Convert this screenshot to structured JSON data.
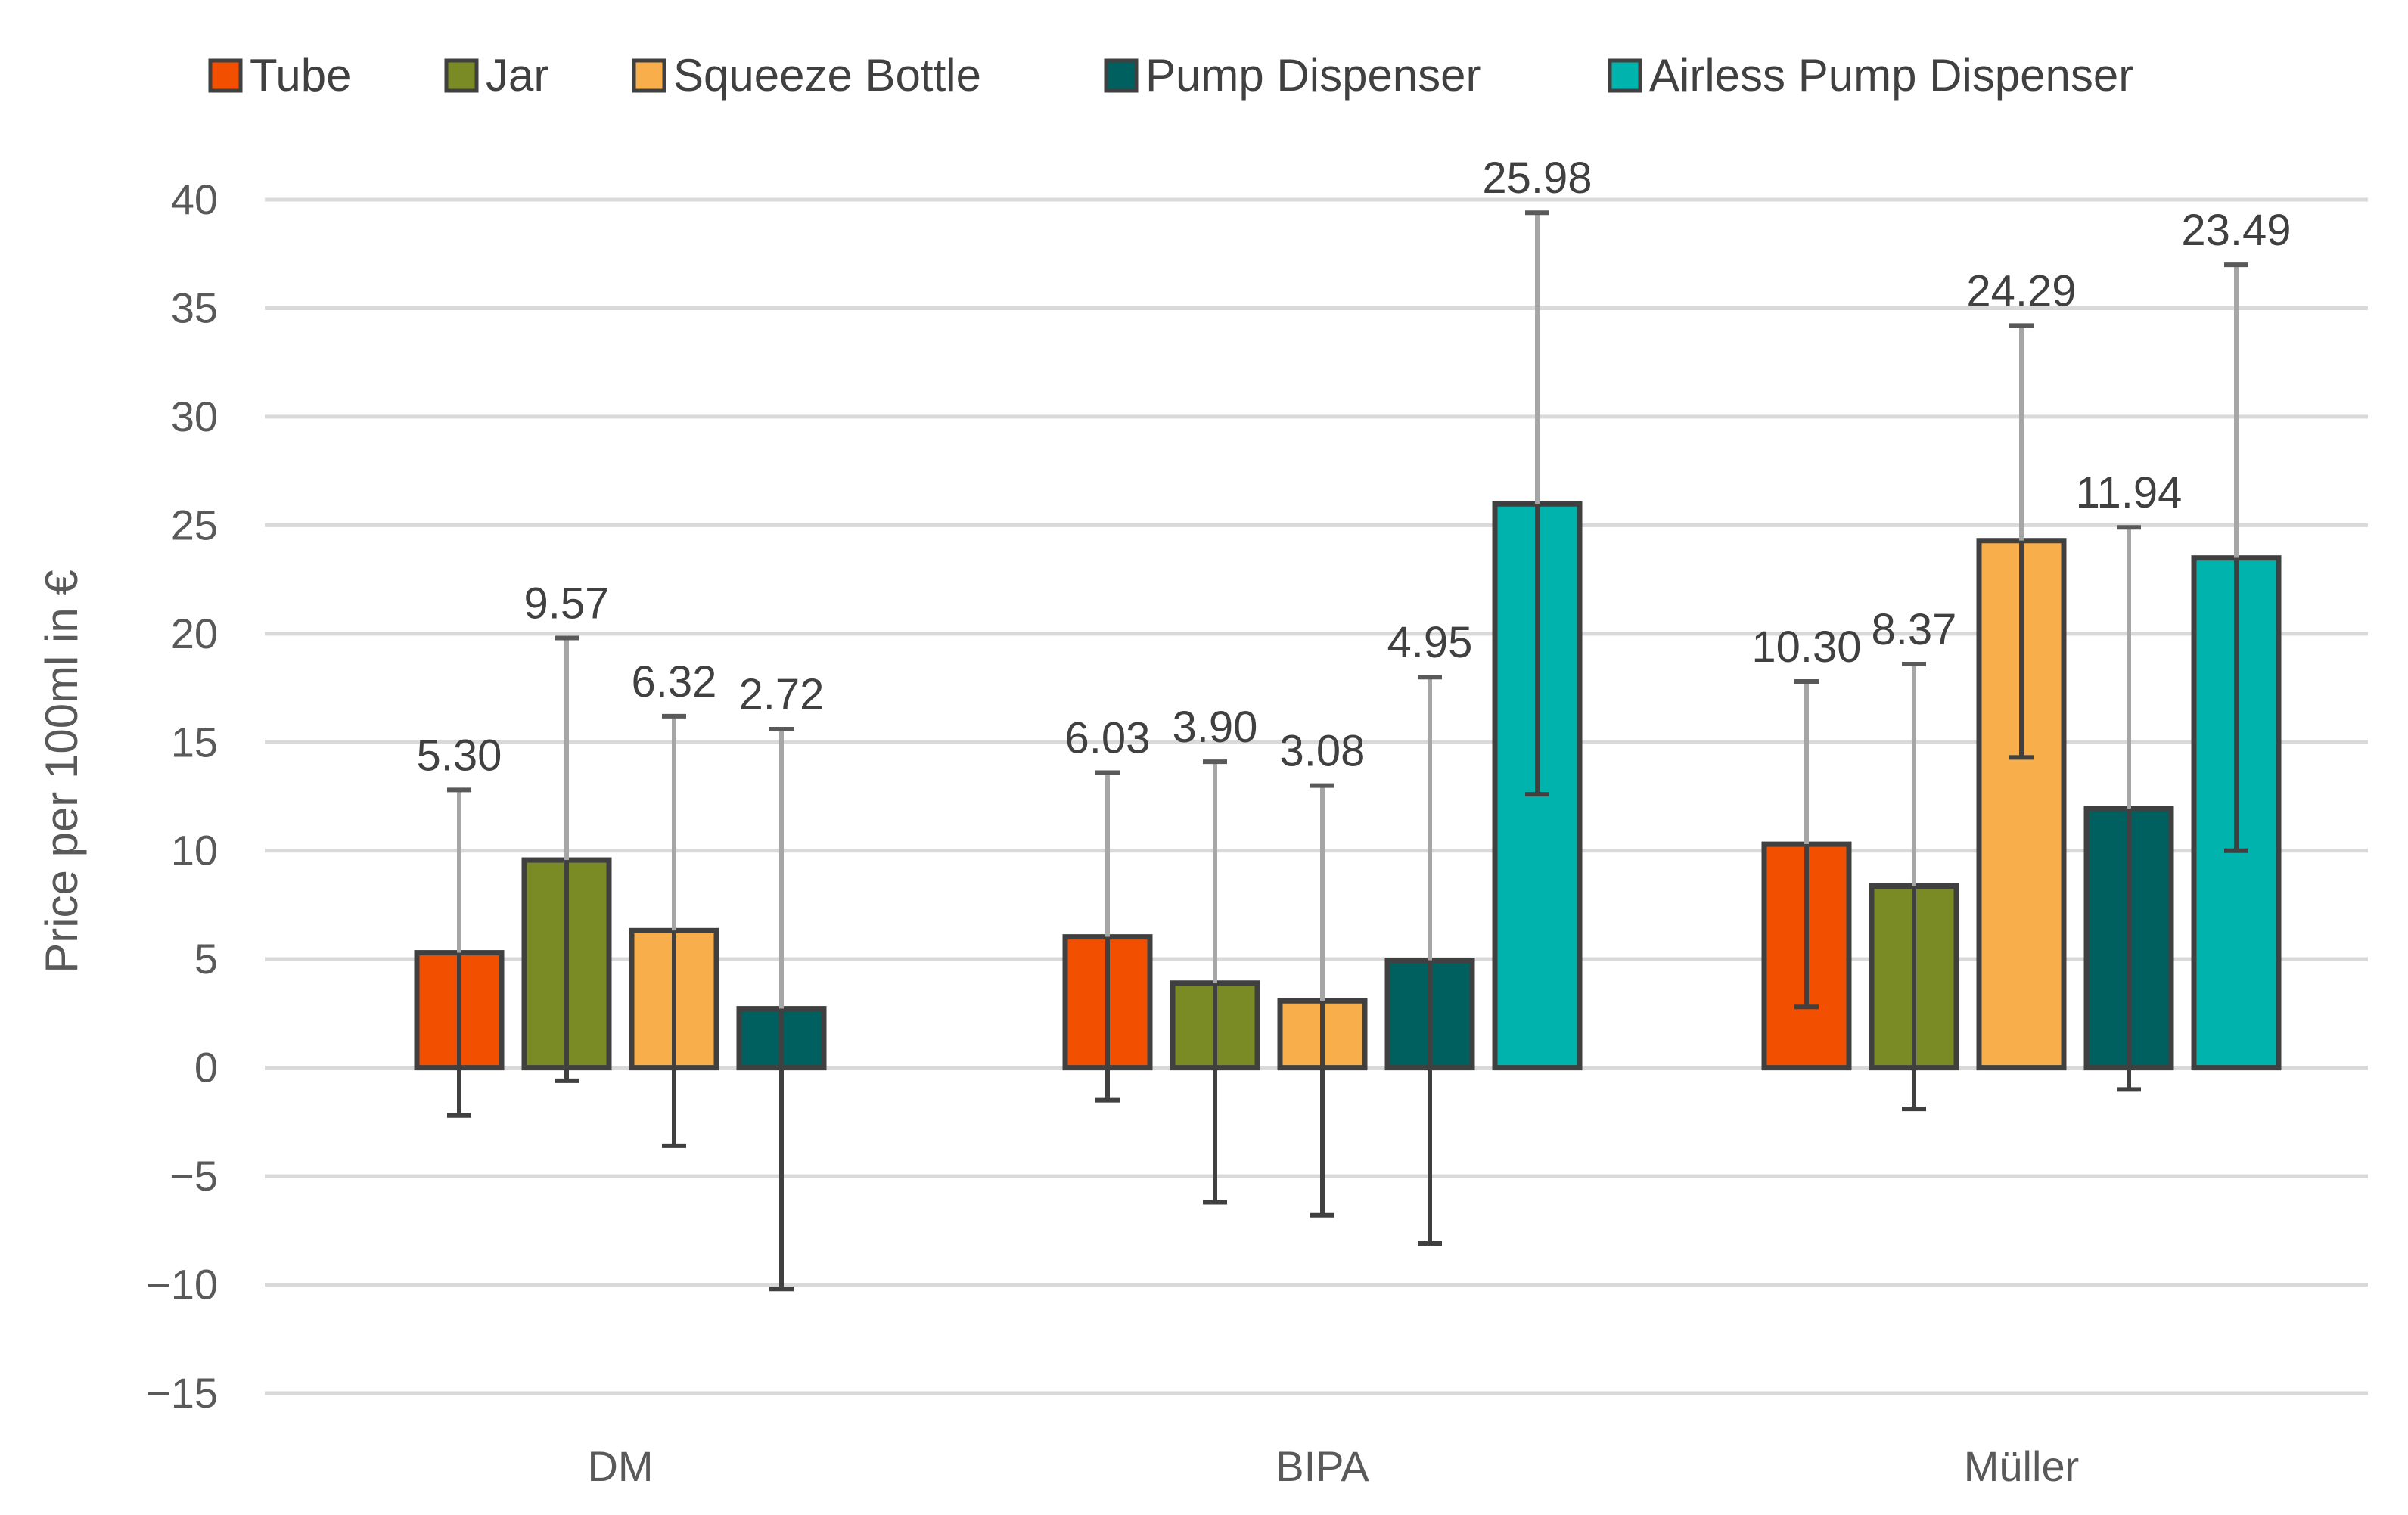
{
  "chart_data": {
    "type": "bar",
    "title": "",
    "xlabel": "",
    "ylabel": "Price per 100ml in €",
    "ylim": [
      -15,
      40
    ],
    "yticks": [
      -15,
      -10,
      -5,
      0,
      5,
      10,
      15,
      20,
      25,
      30,
      35,
      40
    ],
    "ytick_labels": [
      "−15",
      "−10",
      "−5",
      "0",
      "5",
      "10",
      "15",
      "20",
      "25",
      "30",
      "35",
      "40"
    ],
    "grid": true,
    "legend_position": "top",
    "categories": [
      "DM",
      "BIPA",
      "Müller"
    ],
    "series": [
      {
        "name": "Tube",
        "color": "#f25000",
        "values": [
          5.3,
          6.03,
          10.3
        ],
        "labels": [
          "5.30",
          "6.03",
          "10.30"
        ],
        "err_low": [
          -2.2,
          -1.5,
          2.8
        ],
        "err_high": [
          12.8,
          13.6,
          17.8
        ]
      },
      {
        "name": "Jar",
        "color": "#7a8a24",
        "values": [
          9.57,
          3.9,
          8.37
        ],
        "labels": [
          "9.57",
          "3.90",
          "8.37"
        ],
        "err_low": [
          -0.6,
          -6.2,
          -1.9
        ],
        "err_high": [
          19.8,
          14.1,
          18.6
        ]
      },
      {
        "name": "Squeeze Bottle",
        "color": "#f7ae4b",
        "values": [
          6.32,
          3.08,
          24.29
        ],
        "labels": [
          "6.32",
          "3.08",
          "24.29"
        ],
        "err_low": [
          -3.6,
          -6.8,
          14.3
        ],
        "err_high": [
          16.2,
          13.0,
          34.2
        ]
      },
      {
        "name": "Pump Dispenser",
        "color": "#00605f",
        "values": [
          2.72,
          4.95,
          11.94
        ],
        "labels": [
          "2.72",
          "4.95",
          "11.94"
        ],
        "err_low": [
          -10.2,
          -8.1,
          -1.0
        ],
        "err_high": [
          15.6,
          18.0,
          24.9
        ]
      },
      {
        "name": "Airless Pump Dispenser",
        "color": "#00b3ad",
        "values": [
          null,
          25.98,
          23.49
        ],
        "labels": [
          null,
          "25.98",
          "23.49"
        ],
        "err_low": [
          null,
          12.6,
          10.0
        ],
        "err_high": [
          null,
          39.4,
          37.0
        ]
      }
    ]
  }
}
